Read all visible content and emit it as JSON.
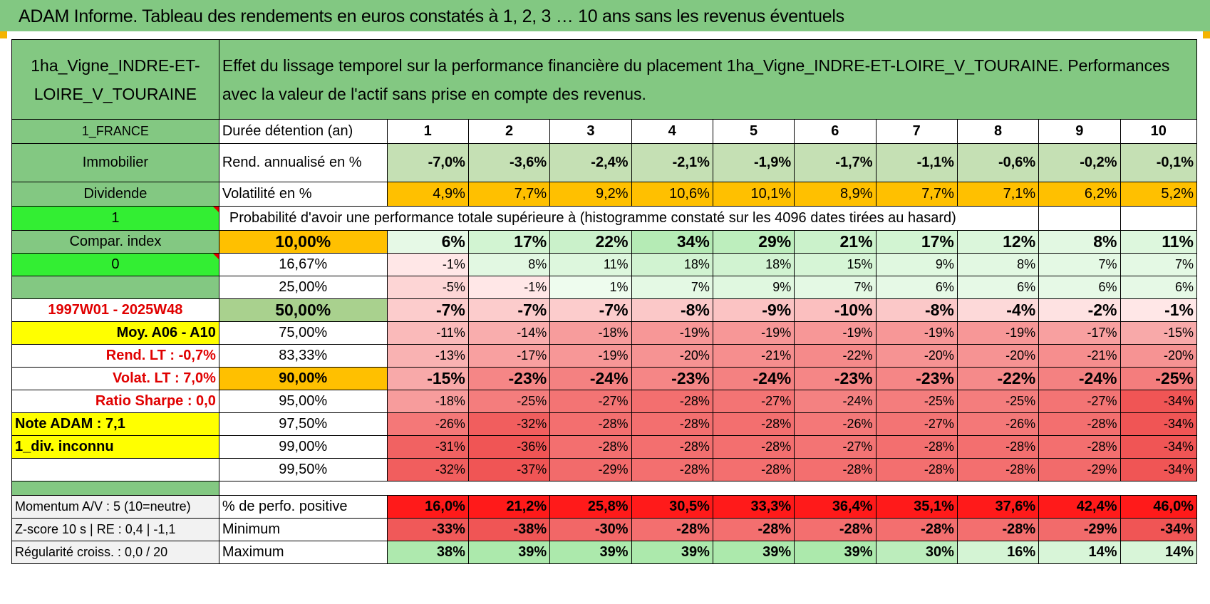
{
  "title": "ADAM Informe. Tableau des rendements en euros constatés à 1, 2, 3 … 10 ans sans les revenus éventuels",
  "asset_name": "1ha_Vigne_INDRE-ET-LOIRE_V_TOURAINE",
  "description": "Effet du lissage temporel sur la performance financière du placement 1ha_Vigne_INDRE-ET-LOIRE_V_TOURAINE. Performances avec la valeur de l'actif sans prise en compte des revenus.",
  "left_labels": {
    "country": "1_FRANCE",
    "category": "Immobilier",
    "dividend": "Dividende",
    "one": "1",
    "compar_index": "Compar. index",
    "zero": "0",
    "period": "1997W01 - 2025W48",
    "moy": "Moy. A06 - A10",
    "rend_lt_label": "Rend. LT :",
    "rend_lt_value": "-0,7%",
    "volat_lt_label": "Volat. LT :",
    "volat_lt_value": "7,0%",
    "sharpe_label": "Ratio Sharpe :",
    "sharpe_value": "0,0",
    "note_adam": "Note ADAM : 7,1",
    "div_inconnu": "1_div. inconnu",
    "momentum": "Momentum A/V : 5 (10=neutre)",
    "zscore": "Z-score 10 s | RE : 0,4 | -1,1",
    "regularite": "Régularité croiss. : 0,0 / 20"
  },
  "row_labels": {
    "duree": "Durée détention (an)",
    "rend": "Rend. annualisé en %",
    "volat": "Volatilité en %",
    "proba": "Probabilité d'avoir une performance totale supérieure à (histogramme constaté sur les 4096 dates tirées au hasard)",
    "perf_pos": "% de perfo. positive",
    "minimum": "Minimum",
    "maximum": "Maximum"
  },
  "years": [
    "1",
    "2",
    "3",
    "4",
    "5",
    "6",
    "7",
    "8",
    "9",
    "10"
  ],
  "rend": [
    "-7,0%",
    "-3,6%",
    "-2,4%",
    "-2,1%",
    "-1,9%",
    "-1,7%",
    "-1,1%",
    "-0,6%",
    "-0,2%",
    "-0,1%"
  ],
  "volat": [
    "4,9%",
    "7,7%",
    "9,2%",
    "10,6%",
    "10,1%",
    "8,9%",
    "7,7%",
    "7,1%",
    "6,2%",
    "5,2%"
  ],
  "quantiles": [
    {
      "q": "10,00%",
      "vals": [
        "6%",
        "17%",
        "22%",
        "34%",
        "29%",
        "21%",
        "17%",
        "12%",
        "8%",
        "11%"
      ]
    },
    {
      "q": "16,67%",
      "vals": [
        "-1%",
        "8%",
        "11%",
        "18%",
        "18%",
        "15%",
        "9%",
        "8%",
        "7%",
        "7%"
      ]
    },
    {
      "q": "25,00%",
      "vals": [
        "-5%",
        "-1%",
        "1%",
        "7%",
        "9%",
        "7%",
        "6%",
        "6%",
        "6%",
        "6%"
      ]
    },
    {
      "q": "50,00%",
      "vals": [
        "-7%",
        "-7%",
        "-7%",
        "-8%",
        "-9%",
        "-10%",
        "-8%",
        "-4%",
        "-2%",
        "-1%"
      ]
    },
    {
      "q": "75,00%",
      "vals": [
        "-11%",
        "-14%",
        "-18%",
        "-19%",
        "-19%",
        "-19%",
        "-19%",
        "-19%",
        "-17%",
        "-15%"
      ]
    },
    {
      "q": "83,33%",
      "vals": [
        "-13%",
        "-17%",
        "-19%",
        "-20%",
        "-21%",
        "-22%",
        "-20%",
        "-20%",
        "-21%",
        "-20%"
      ]
    },
    {
      "q": "90,00%",
      "vals": [
        "-15%",
        "-23%",
        "-24%",
        "-23%",
        "-24%",
        "-23%",
        "-23%",
        "-22%",
        "-24%",
        "-25%"
      ]
    },
    {
      "q": "95,00%",
      "vals": [
        "-18%",
        "-25%",
        "-27%",
        "-28%",
        "-27%",
        "-24%",
        "-25%",
        "-25%",
        "-27%",
        "-34%"
      ]
    },
    {
      "q": "97,50%",
      "vals": [
        "-26%",
        "-32%",
        "-28%",
        "-28%",
        "-28%",
        "-26%",
        "-27%",
        "-26%",
        "-28%",
        "-34%"
      ]
    },
    {
      "q": "99,00%",
      "vals": [
        "-31%",
        "-36%",
        "-28%",
        "-28%",
        "-28%",
        "-27%",
        "-28%",
        "-28%",
        "-28%",
        "-34%"
      ]
    },
    {
      "q": "99,50%",
      "vals": [
        "-32%",
        "-37%",
        "-29%",
        "-28%",
        "-28%",
        "-28%",
        "-28%",
        "-28%",
        "-29%",
        "-34%"
      ]
    }
  ],
  "perf_pos": [
    "16,0%",
    "21,2%",
    "25,8%",
    "30,5%",
    "33,3%",
    "36,4%",
    "35,1%",
    "37,6%",
    "42,4%",
    "46,0%"
  ],
  "minimum": [
    "-33%",
    "-38%",
    "-30%",
    "-28%",
    "-28%",
    "-28%",
    "-28%",
    "-28%",
    "-29%",
    "-34%"
  ],
  "maximum": [
    "38%",
    "39%",
    "39%",
    "39%",
    "39%",
    "39%",
    "30%",
    "16%",
    "14%",
    "14%"
  ]
}
